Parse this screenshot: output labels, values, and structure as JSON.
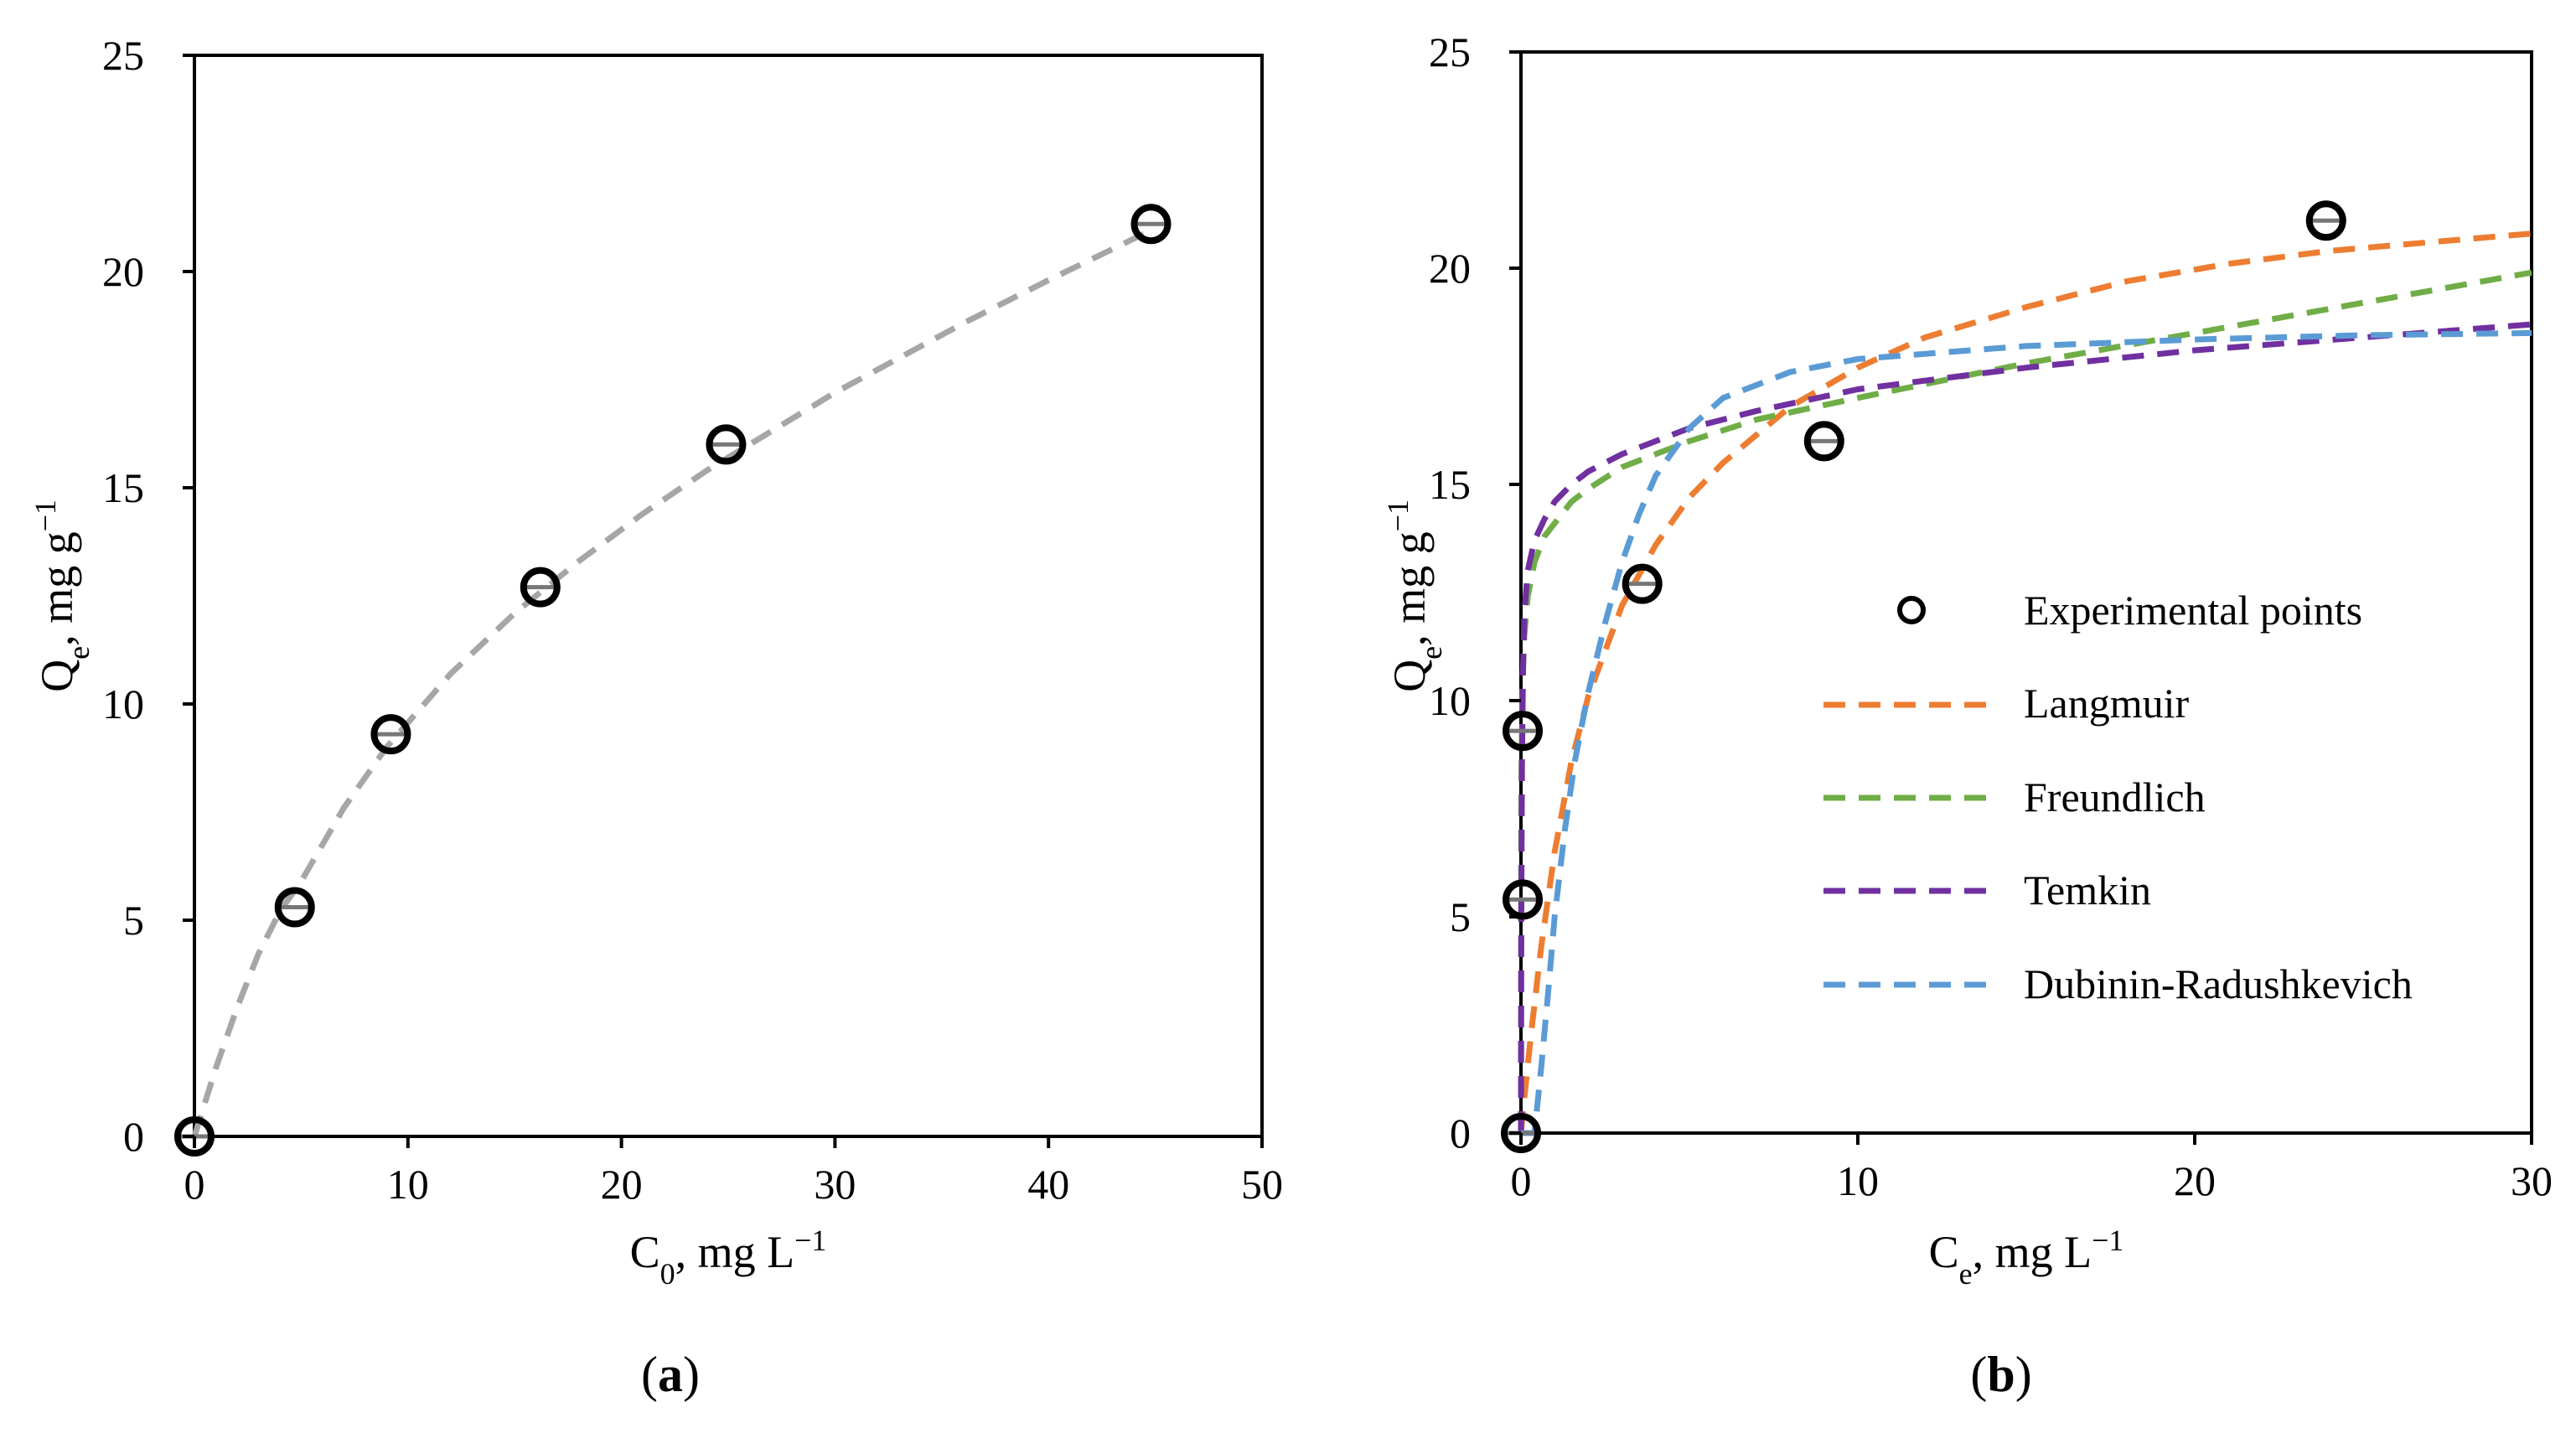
{
  "chart_data": [
    {
      "type": "scatter",
      "panel_label": "a",
      "xlabel": "C",
      "xlabel_sub": "0",
      "xlabel_unit": ", mg L",
      "xlabel_sup": "−1",
      "ylabel": "Q",
      "ylabel_sub": "e",
      "ylabel_unit": ", mg g",
      "ylabel_sup": "−1",
      "xlim": [
        0,
        50
      ],
      "ylim": [
        0,
        25
      ],
      "xticks": [
        "0",
        "10",
        "20",
        "30",
        "40",
        "50"
      ],
      "yticks": [
        "0",
        "5",
        "10",
        "15",
        "20",
        "25"
      ],
      "points": {
        "x": [
          0,
          4.7,
          9.2,
          16.2,
          24.9,
          44.8
        ],
        "y": [
          0,
          5.3,
          9.3,
          12.7,
          16.0,
          21.1
        ]
      },
      "fit": {
        "name": "fit",
        "color": "#a6a6a6",
        "x": [
          0,
          1,
          2,
          3,
          4,
          5,
          7,
          9,
          12,
          15,
          18,
          21,
          24,
          27,
          30,
          33,
          36,
          40,
          45
        ],
        "y": [
          0,
          1.58,
          2.98,
          4.22,
          5.2,
          5.9,
          7.6,
          9.0,
          10.7,
          12.1,
          13.3,
          14.4,
          15.4,
          16.3,
          17.2,
          18.0,
          18.8,
          19.8,
          21.0
        ]
      }
    },
    {
      "type": "scatter",
      "panel_label": "b",
      "xlabel": "C",
      "xlabel_sub": "e",
      "xlabel_unit": ", mg L",
      "xlabel_sup": "−1",
      "ylabel": "Q",
      "ylabel_sub": "e",
      "ylabel_unit": ", mg g",
      "ylabel_sup": "−1",
      "xlim": [
        0,
        30
      ],
      "ylim": [
        0,
        25
      ],
      "xticks": [
        "0",
        "10",
        "20",
        "30"
      ],
      "yticks": [
        "0",
        "5",
        "10",
        "15",
        "20",
        "25"
      ],
      "points": {
        "x": [
          0,
          0.05,
          0.05,
          3.6,
          9.0,
          23.9
        ],
        "y": [
          0,
          5.4,
          9.3,
          12.7,
          16.0,
          21.1
        ]
      },
      "legend": [
        "Experimental points",
        "Langmuir",
        "Freundlich",
        "Temkin",
        "Dubinin-Radushkevich"
      ],
      "series": [
        {
          "name": "Langmuir",
          "color": "#ed7d31",
          "x": [
            0,
            0.1,
            0.3,
            0.6,
            1,
            1.5,
            2,
            3,
            4,
            5,
            6,
            8,
            10,
            12,
            15,
            18,
            21,
            24,
            27,
            30
          ],
          "y": [
            0,
            0.8,
            2.3,
            4.3,
            6.5,
            8.6,
            10.1,
            12.2,
            13.6,
            14.7,
            15.5,
            16.8,
            17.7,
            18.4,
            19.1,
            19.7,
            20.1,
            20.4,
            20.6,
            20.8
          ]
        },
        {
          "name": "Freundlich",
          "color": "#70ad47",
          "x": [
            0,
            0.01,
            0.05,
            0.1,
            0.2,
            0.4,
            0.7,
            1,
            1.5,
            2,
            3,
            4,
            5,
            7,
            10,
            15,
            20,
            25,
            30
          ],
          "y": [
            0,
            8.0,
            10.5,
            11.5,
            12.4,
            13.2,
            13.8,
            14.1,
            14.6,
            14.9,
            15.4,
            15.7,
            16.0,
            16.5,
            17.0,
            17.8,
            18.5,
            19.2,
            19.9
          ]
        },
        {
          "name": "Temkin",
          "color": "#7030a0",
          "x": [
            0,
            0.01,
            0.03,
            0.06,
            0.1,
            0.2,
            0.4,
            0.7,
            1,
            1.5,
            2,
            3,
            4,
            5,
            7,
            10,
            15,
            20,
            25,
            30
          ],
          "y": [
            0,
            5.0,
            8.5,
            10.6,
            12.0,
            13.0,
            13.7,
            14.2,
            14.6,
            15.0,
            15.3,
            15.7,
            16.0,
            16.3,
            16.7,
            17.2,
            17.7,
            18.1,
            18.4,
            18.7
          ]
        },
        {
          "name": "Dubinin-Radushkevich",
          "color": "#5b9bd5",
          "x": [
            0,
            0.4,
            0.6,
            0.8,
            1,
            1.3,
            1.6,
            2,
            2.5,
            3,
            3.5,
            4,
            5,
            6,
            8,
            10,
            15,
            20,
            25,
            30
          ],
          "y": [
            0,
            0,
            1.5,
            3.2,
            5.0,
            7.0,
            8.6,
            10.2,
            11.8,
            13.2,
            14.3,
            15.2,
            16.3,
            17.0,
            17.6,
            17.9,
            18.2,
            18.35,
            18.45,
            18.5
          ]
        }
      ]
    }
  ]
}
